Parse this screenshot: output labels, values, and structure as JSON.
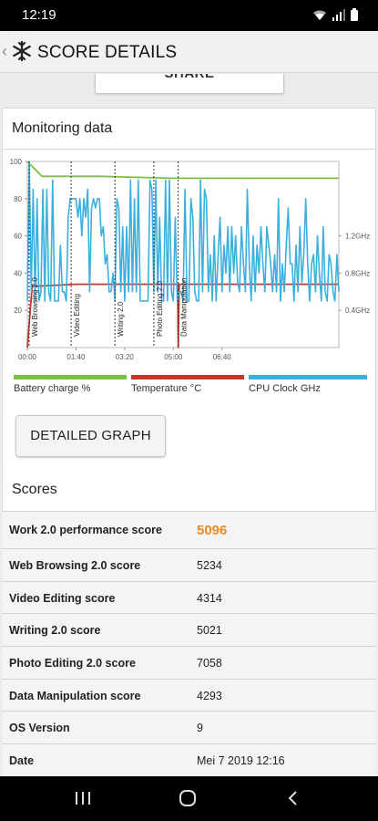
{
  "status": {
    "time": "12:19"
  },
  "app_bar": {
    "title": "SCORE DETAILS"
  },
  "share": {
    "label": "SHARE"
  },
  "monitoring": {
    "title": "Monitoring data",
    "detail_button": "DETAILED GRAPH"
  },
  "chart_data": {
    "type": "line",
    "x_ticks": [
      "00:00",
      "01:40",
      "03:20",
      "05:00",
      "06:40"
    ],
    "y_left_ticks": [
      "100",
      "80",
      "60",
      "40",
      "20"
    ],
    "y_right_ticks": [
      "1.2GHz",
      "0.8GHz",
      "0.4GHz"
    ],
    "ylim_left": [
      0,
      100
    ],
    "ylim_right": [
      0,
      2.0
    ],
    "sections": [
      {
        "label": "Web Browsing 2.0",
        "start": "00:00"
      },
      {
        "label": "Video Editing",
        "start": "01:30"
      },
      {
        "label": "Writing 2.0",
        "start": "03:00"
      },
      {
        "label": "Photo Editing 2.0",
        "start": "04:20"
      },
      {
        "label": "Data Manipulation",
        "start": "05:10"
      }
    ],
    "series": [
      {
        "name": "Battery charge %",
        "color": "#7ac143",
        "axis": "left",
        "x_seconds": [
          0,
          30,
          60,
          150,
          300,
          420,
          520,
          600,
          640
        ],
        "values": [
          100,
          92,
          92,
          92,
          91,
          91,
          91,
          91,
          91
        ]
      },
      {
        "name": "Temperature °C",
        "color": "#c0392b",
        "axis": "left",
        "x_seconds": [
          0,
          10,
          20,
          100,
          200,
          300,
          309,
          310,
          312,
          320,
          400,
          500,
          640
        ],
        "values": [
          0,
          33,
          33,
          34,
          34,
          34,
          34,
          0,
          34,
          34,
          34,
          34,
          34
        ]
      },
      {
        "name": "CPU Clock GHz",
        "color": "#3cb0dc",
        "axis": "right",
        "x_seconds": [
          0,
          4,
          8,
          12,
          16,
          20,
          24,
          28,
          32,
          36,
          40,
          44,
          48,
          52,
          56,
          60,
          64,
          68,
          72,
          76,
          80,
          84,
          88,
          92,
          96,
          100,
          104,
          108,
          112,
          116,
          120,
          124,
          128,
          132,
          136,
          140,
          144,
          148,
          152,
          156,
          160,
          164,
          168,
          172,
          176,
          180,
          184,
          188,
          192,
          196,
          200,
          204,
          208,
          212,
          216,
          220,
          224,
          228,
          232,
          236,
          240,
          244,
          248,
          252,
          256,
          260,
          264,
          268,
          272,
          276,
          280,
          284,
          288,
          292,
          296,
          300,
          304,
          308,
          312,
          316,
          320,
          324,
          328,
          332,
          336,
          340,
          344,
          348,
          352,
          356,
          360,
          364,
          368,
          372,
          376,
          380,
          384,
          388,
          392,
          396,
          400,
          404,
          408,
          412,
          416,
          420,
          424,
          428,
          432,
          436,
          440,
          444,
          448,
          452,
          456,
          460,
          464,
          468,
          472,
          476,
          480,
          484,
          488,
          492,
          496,
          500,
          504,
          508,
          512,
          516,
          520,
          524,
          528,
          532,
          536,
          540,
          544,
          548,
          552,
          556,
          560,
          564,
          568,
          572,
          576,
          580,
          584,
          588,
          592,
          596,
          600,
          604,
          608,
          612,
          616,
          620,
          624,
          628,
          632,
          636,
          640
        ],
        "values": [
          0.5,
          2.0,
          0.6,
          1.7,
          0.5,
          1.6,
          0.5,
          0.6,
          1.7,
          0.5,
          1.7,
          0.6,
          0.5,
          1.8,
          0.5,
          0.5,
          0.5,
          1.1,
          0.6,
          0.6,
          0.5,
          1.4,
          1.6,
          1.6,
          1.6,
          1.6,
          1.4,
          1.6,
          1.2,
          1.6,
          1.4,
          1.7,
          0.6,
          1.5,
          1.6,
          1.5,
          1.6,
          1.6,
          1.2,
          1.3,
          0.9,
          1.0,
          0.6,
          0.6,
          0.8,
          0.5,
          1.6,
          1.5,
          0.6,
          1.3,
          0.5,
          1.3,
          0.6,
          1.8,
          0.6,
          1.6,
          0.6,
          1.8,
          0.5,
          0.5,
          0.5,
          0.5,
          0.5,
          1.8,
          1.7,
          0.6,
          1.8,
          0.6,
          1.4,
          0.5,
          0.5,
          1.8,
          0.5,
          1.8,
          0.6,
          0.5,
          1.4,
          0.5,
          0.6,
          0.6,
          0.5,
          1.7,
          0.5,
          0.5,
          1.6,
          1.4,
          0.6,
          0.5,
          0.5,
          1.8,
          0.6,
          1.7,
          1.6,
          0.6,
          1.0,
          0.5,
          1.2,
          0.5,
          1.0,
          1.4,
          0.6,
          1.1,
          0.8,
          1.3,
          0.6,
          1.3,
          0.8,
          1.2,
          0.7,
          0.6,
          1.3,
          0.9,
          0.6,
          1.7,
          0.9,
          0.5,
          1.2,
          0.6,
          1.1,
          0.8,
          1.3,
          0.9,
          0.6,
          1.3,
          1.1,
          0.9,
          0.6,
          1.0,
          0.6,
          1.6,
          0.5,
          0.9,
          0.6,
          1.1,
          1.5,
          0.9,
          0.9,
          0.5,
          1.1,
          0.6,
          1.3,
          0.7,
          1.0,
          1.6,
          0.9,
          0.5,
          0.9,
          1.0,
          0.6,
          1.2,
          0.8,
          0.5,
          1.3,
          0.6,
          0.5,
          1.0,
          0.9,
          0.6,
          0.5,
          1.0,
          0.6
        ]
      }
    ]
  },
  "legend": [
    {
      "label": "Battery charge %",
      "color": "#7ac143"
    },
    {
      "label": "Temperature °C",
      "color": "#c0392b"
    },
    {
      "label": "CPU Clock GHz",
      "color": "#3cb0dc"
    }
  ],
  "scores": {
    "title": "Scores",
    "rows": [
      {
        "label": "Work 2.0 performance score",
        "value": "5096"
      },
      {
        "label": "Web Browsing 2.0 score",
        "value": "5234"
      },
      {
        "label": "Video Editing score",
        "value": "4314"
      },
      {
        "label": "Writing 2.0 score",
        "value": "5021"
      },
      {
        "label": "Photo Editing 2.0 score",
        "value": "7058"
      },
      {
        "label": "Data Manipulation score",
        "value": "4293"
      },
      {
        "label": "OS Version",
        "value": "9"
      },
      {
        "label": "Date",
        "value": "Mei 7 2019 12:16"
      }
    ]
  }
}
